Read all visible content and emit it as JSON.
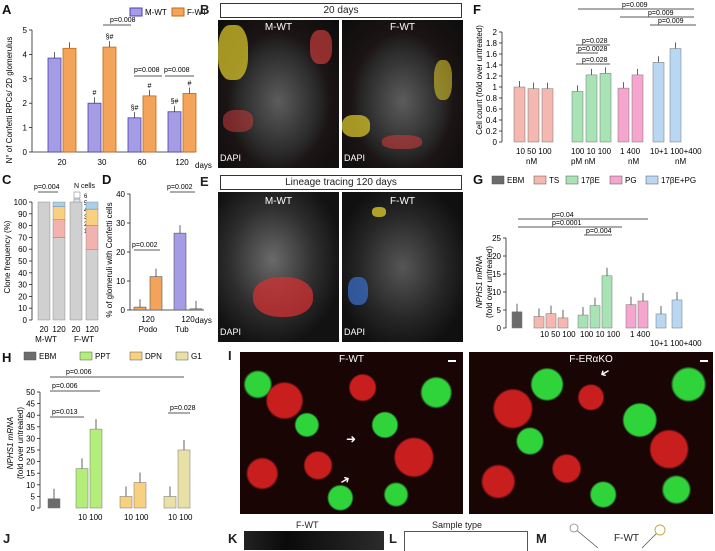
{
  "panels": {
    "A": {
      "letter": "A",
      "ylabel": "N° of Confetti RPCs/ 2D glomerulus",
      "legend": [
        "M-WT",
        "F-WT"
      ],
      "xunit": "days",
      "pvalues": [
        "p=0.008",
        "p=0.008",
        "p=0.008"
      ],
      "sig": [
        "#",
        "§#",
        "§#",
        "#",
        "§#",
        "#"
      ]
    },
    "B": {
      "letter": "B",
      "banner": "20 days",
      "labels": [
        "M-WT",
        "F-WT"
      ],
      "dapi": "DAPI"
    },
    "C": {
      "letter": "C",
      "ylabel": "Clone frequency (%)",
      "pvalue": "p=0.004",
      "legend_title": "N cells",
      "legend": [
        "6",
        "5",
        "4",
        "3",
        "2",
        "1"
      ]
    },
    "D": {
      "letter": "D",
      "ylabel": "% of glomeruli with Confetti cells",
      "pvalues": [
        "p=0.002",
        "p=0.002"
      ],
      "xunit": "days"
    },
    "E": {
      "letter": "E",
      "banner": "Lineage tracing 120 days",
      "labels": [
        "M-WT",
        "F-WT"
      ],
      "dapi": "DAPI"
    },
    "F": {
      "letter": "F",
      "ylabel": "Cell count (fold over untreated)",
      "pvalues": [
        "p=0.009",
        "p=0.009",
        "p=0.009",
        "p=0.028",
        "p=0.0028",
        "p=0.028"
      ],
      "groups": [
        {
          "ticks": "10  50  100",
          "unit": "nM"
        },
        {
          "ticks": "100  10  100",
          "unit": "pM    nM"
        },
        {
          "ticks": "1  400",
          "unit": "nM"
        },
        {
          "ticks": "10+1  100+400",
          "unit": "nM"
        }
      ]
    },
    "G": {
      "letter": "G",
      "ylabel": "NPHS1 mRNA",
      "ylabel2": "(fold over untreated)",
      "legend": [
        "EBM",
        "TS",
        "17βE",
        "PG",
        "17βE+PG"
      ],
      "pvalues": [
        "p=0.04",
        "p=0.0001",
        "p=0.004"
      ]
    },
    "H": {
      "letter": "H",
      "ylabel": "NPHS1 mRNA",
      "ylabel2": "(fold over untreated)",
      "legend": [
        "EBM",
        "PPT",
        "DPN",
        "G1"
      ],
      "pvalues": [
        "p=0.013",
        "p=0.006",
        "p=0.006",
        "p=0.028"
      ],
      "groups": [
        "10 100",
        "10 100",
        "10 100"
      ],
      "unit": "nM"
    },
    "I": {
      "letter": "I",
      "labels": [
        "F-WT",
        "F-ERαKO"
      ]
    },
    "J": {
      "letter": "J"
    },
    "K": {
      "letter": "K",
      "label": "F-WT"
    },
    "L": {
      "letter": "L",
      "title": "Sample type"
    },
    "M": {
      "letter": "M",
      "label": "F-WT"
    }
  },
  "chart_data": [
    {
      "type": "bar",
      "panel": "A",
      "ylabel": "N° of Confetti RPCs/ 2D glomerulus",
      "categories": [
        "20",
        "30",
        "60",
        "120"
      ],
      "xunit": "days",
      "ylim": [
        0,
        5
      ],
      "series": [
        {
          "name": "M-WT",
          "values": [
            3.85,
            2.0,
            1.4,
            1.65
          ]
        },
        {
          "name": "F-WT",
          "values": [
            4.25,
            4.3,
            2.3,
            2.4
          ]
        }
      ]
    },
    {
      "type": "bar",
      "panel": "C",
      "ylabel": "Clone frequency (%)",
      "categories": [
        "M-WT 20",
        "M-WT 120",
        "F-WT 20",
        "F-WT 120"
      ],
      "ylim": [
        0,
        100
      ],
      "series": [
        {
          "name": "1",
          "values": [
            100,
            70,
            100,
            60
          ]
        },
        {
          "name": "2",
          "values": [
            0,
            15,
            0,
            20
          ]
        },
        {
          "name": "3",
          "values": [
            0,
            11,
            0,
            14
          ]
        },
        {
          "name": "4",
          "values": [
            0,
            4,
            0,
            6
          ]
        }
      ]
    },
    {
      "type": "bar",
      "panel": "D",
      "ylabel": "% of glomeruli with Confetti cells",
      "categories": [
        "Podo 20",
        "Podo 120",
        "Tub 20",
        "Tub 120"
      ],
      "ylim": [
        0,
        40
      ],
      "values": [
        1,
        11.5,
        26.5,
        0.4
      ]
    },
    {
      "type": "bar",
      "panel": "F",
      "ylabel": "Cell count (fold over untreated)",
      "ylim": [
        0,
        2
      ],
      "categories": [
        "TS 10",
        "TS 50",
        "TS 100",
        "17βE 100pM",
        "17βE 10nM",
        "17βE 100nM",
        "PG 1",
        "PG 400",
        "17βE+PG 10+1",
        "17βE+PG 100+400"
      ],
      "values": [
        1.0,
        0.97,
        0.97,
        0.92,
        1.22,
        1.25,
        0.98,
        1.22,
        1.45,
        1.7
      ]
    },
    {
      "type": "bar",
      "panel": "G",
      "ylabel": "NPHS1 mRNA (fold over untreated)",
      "ylim": [
        0,
        25
      ],
      "categories": [
        "EBM",
        "TS 10",
        "TS 50",
        "TS 100",
        "17βE 100pM",
        "17βE 10nM",
        "17βE 100nM",
        "PG 1",
        "PG 400",
        "17βE+PG 10+1",
        "17βE+PG 100+400"
      ],
      "values": [
        4.5,
        3.2,
        4.0,
        2.8,
        3.6,
        6.2,
        14.5,
        6.5,
        7.5,
        3.9,
        7.8
      ]
    },
    {
      "type": "bar",
      "panel": "H",
      "ylabel": "NPHS1 mRNA (fold over untreated)",
      "ylim": [
        0,
        50
      ],
      "categories": [
        "EBM",
        "PPT 10",
        "PPT 100",
        "DPN 10",
        "DPN 100",
        "G1 10",
        "G1 100"
      ],
      "values": [
        4,
        17,
        34,
        5,
        11,
        5,
        25
      ]
    }
  ]
}
